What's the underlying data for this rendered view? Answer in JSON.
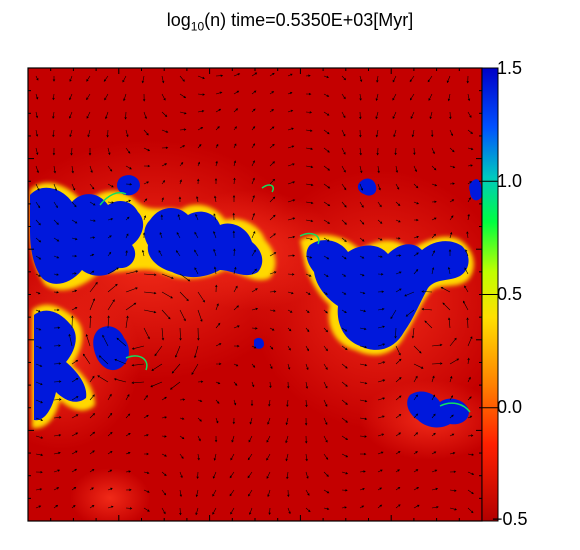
{
  "title": {
    "prefix": "log",
    "base": "10",
    "suffix": "(n) time=0.5350E+03[Myr]"
  },
  "chart_data": {
    "type": "heatmap",
    "quantity": "log10(n)",
    "time_label": "time=0.5350E+03[Myr]",
    "colorbar": {
      "range": [
        -0.5,
        1.5
      ],
      "ticks": [
        1.5,
        1.0,
        0.5,
        0.0,
        -0.5
      ],
      "tick_labels": [
        "1.5",
        "1.0",
        "0.5",
        "0.0",
        "−0.5"
      ],
      "colormap": [
        "#b30000",
        "#ff0000",
        "#ff8000",
        "#ffff00",
        "#00ff00",
        "#00c0c0",
        "#0000ff",
        "#0000c8"
      ]
    },
    "overlay": "velocity vectors",
    "axis_tick_labels_shown": false
  },
  "colors": {
    "low": "#c00000",
    "diffuse": "#e41c10",
    "dense": "#0016dd",
    "arrows": "#000000"
  }
}
